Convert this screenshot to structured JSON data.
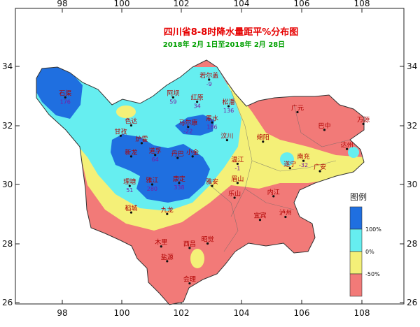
{
  "title": "四川省8-8时降水量距平%分布图",
  "subtitle": "2018年 2月 1日至2018年 2月 28日",
  "axes": {
    "x_ticks": [
      "98",
      "100",
      "102",
      "104",
      "106",
      "108"
    ],
    "y_ticks": [
      "34",
      "32",
      "30",
      "28",
      "26"
    ]
  },
  "legend": {
    "title": "图例",
    "items": [
      {
        "label": "100%",
        "color": "#1f6fe0"
      },
      {
        "label": "0%",
        "color": "#66eef0"
      },
      {
        "label": "-50%",
        "color": "#f4f078"
      },
      {
        "label": "",
        "color": "#f27a78"
      }
    ]
  },
  "colors": {
    "above_100": "#1f6fe0",
    "0_to_100": "#66eef0",
    "minus50_to_0": "#f4f078",
    "below_minus50": "#f27a78",
    "water": "#66eef0"
  },
  "stations": [
    {
      "name": "石渠",
      "value": "176",
      "lon": 98.1,
      "lat": 32.95
    },
    {
      "name": "若尔盖",
      "value": "-9",
      "lon": 102.9,
      "lat": 33.55
    },
    {
      "name": "阿坝",
      "value": "59",
      "lon": 101.7,
      "lat": 32.95
    },
    {
      "name": "红原",
      "value": "34",
      "lon": 102.5,
      "lat": 32.8
    },
    {
      "name": "松潘",
      "value": "136",
      "lon": 103.55,
      "lat": 32.65
    },
    {
      "name": "马尔康",
      "value": "-22",
      "lon": 102.2,
      "lat": 31.95
    },
    {
      "name": "黑水",
      "value": "186",
      "lon": 103.0,
      "lat": 32.1
    },
    {
      "name": "甘孜",
      "value": "",
      "lon": 99.95,
      "lat": 31.65
    },
    {
      "name": "色达",
      "value": "",
      "lon": 100.3,
      "lat": 32.0
    },
    {
      "name": "炉霍",
      "value": "",
      "lon": 100.65,
      "lat": 31.4
    },
    {
      "name": "新龙",
      "value": "",
      "lon": 100.3,
      "lat": 30.95
    },
    {
      "name": "道孚",
      "value": "64",
      "lon": 101.1,
      "lat": 31.0
    },
    {
      "name": "丹巴",
      "value": "",
      "lon": 101.85,
      "lat": 30.9
    },
    {
      "name": "小金",
      "value": "",
      "lon": 102.35,
      "lat": 30.95
    },
    {
      "name": "汶川",
      "value": "",
      "lon": 103.5,
      "lat": 31.5
    },
    {
      "name": "理塘",
      "value": "51",
      "lon": 100.25,
      "lat": 29.95
    },
    {
      "name": "雅江",
      "value": "280",
      "lon": 101.0,
      "lat": 30.0
    },
    {
      "name": "康定",
      "value": "338",
      "lon": 101.9,
      "lat": 30.05
    },
    {
      "name": "九龙",
      "value": "",
      "lon": 101.5,
      "lat": 29.0
    },
    {
      "name": "稻城",
      "value": "",
      "lon": 100.3,
      "lat": 29.05
    },
    {
      "name": "木里",
      "value": "",
      "lon": 101.3,
      "lat": 27.9
    },
    {
      "name": "西昌",
      "value": "",
      "lon": 102.25,
      "lat": 27.85
    },
    {
      "name": "昭觉",
      "value": "",
      "lon": 102.85,
      "lat": 28.0
    },
    {
      "name": "盐源",
      "value": "",
      "lon": 101.5,
      "lat": 27.4
    },
    {
      "name": "会理",
      "value": "",
      "lon": 102.25,
      "lat": 26.65
    },
    {
      "name": "温江",
      "value": "-1",
      "lon": 103.85,
      "lat": 30.7
    },
    {
      "name": "雅安",
      "value": "",
      "lon": 103.0,
      "lat": 29.95
    },
    {
      "name": "眉山",
      "value": "",
      "lon": 103.85,
      "lat": 30.05
    },
    {
      "name": "乐山",
      "value": "",
      "lon": 103.75,
      "lat": 29.55
    },
    {
      "name": "宜宾",
      "value": "",
      "lon": 104.6,
      "lat": 28.8
    },
    {
      "name": "泸州",
      "value": "",
      "lon": 105.45,
      "lat": 28.9
    },
    {
      "name": "内江",
      "value": "",
      "lon": 105.05,
      "lat": 29.6
    },
    {
      "name": "绵阳",
      "value": "",
      "lon": 104.7,
      "lat": 31.45
    },
    {
      "name": "广元",
      "value": "",
      "lon": 105.85,
      "lat": 32.45
    },
    {
      "name": "巴中",
      "value": "",
      "lon": 106.75,
      "lat": 31.85
    },
    {
      "name": "南充",
      "value": "-32",
      "lon": 106.05,
      "lat": 30.8
    },
    {
      "name": "达州",
      "value": "",
      "lon": 107.5,
      "lat": 31.2
    },
    {
      "name": "遂宁",
      "value": "",
      "lon": 105.6,
      "lat": 30.55
    },
    {
      "name": "广安",
      "value": "",
      "lon": 106.6,
      "lat": 30.45
    },
    {
      "name": "万源",
      "value": "",
      "lon": 108.05,
      "lat": 32.05
    }
  ]
}
